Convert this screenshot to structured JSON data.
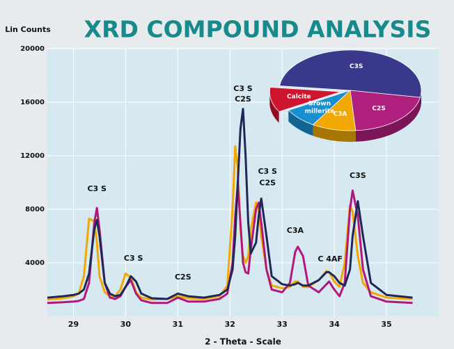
{
  "chart_data": {
    "type": "line",
    "title": "XRD COMPOUND ANALYSIS",
    "y_label": "Lin Counts",
    "x_label": "2 - Theta - Scale",
    "xlim": [
      28.5,
      36
    ],
    "ylim": [
      0,
      20000
    ],
    "xticks": [
      29,
      30,
      31,
      32,
      33,
      34,
      35
    ],
    "yticks": [
      4000,
      8000,
      12000,
      16000,
      20000
    ],
    "grid": true,
    "x": [
      28.5,
      28.8,
      29.0,
      29.1,
      29.2,
      29.3,
      29.4,
      29.45,
      29.5,
      29.6,
      29.7,
      29.8,
      29.9,
      30.0,
      30.1,
      30.2,
      30.3,
      30.5,
      30.8,
      31.0,
      31.2,
      31.5,
      31.8,
      31.95,
      32.05,
      32.1,
      32.15,
      32.2,
      32.25,
      32.3,
      32.35,
      32.4,
      32.5,
      32.55,
      32.6,
      32.7,
      32.8,
      33.0,
      33.15,
      33.25,
      33.3,
      33.4,
      33.5,
      33.7,
      33.85,
      33.9,
      34.0,
      34.1,
      34.2,
      34.3,
      34.35,
      34.45,
      34.55,
      34.7,
      35.0,
      35.5
    ],
    "series": [
      {
        "color": "#f2a800",
        "values": [
          1250,
          1350,
          1500,
          1700,
          3000,
          7300,
          7100,
          5500,
          3000,
          1800,
          1500,
          1500,
          2000,
          3200,
          2900,
          1800,
          1400,
          1250,
          1300,
          1500,
          1350,
          1300,
          1500,
          2300,
          8000,
          12700,
          11000,
          6500,
          4500,
          4000,
          4500,
          6500,
          8500,
          8000,
          6000,
          3500,
          2300,
          2100,
          2200,
          2600,
          2600,
          2200,
          2200,
          2700,
          3400,
          3300,
          2600,
          2200,
          4000,
          8300,
          7800,
          4500,
          2500,
          1800,
          1400,
          1300
        ]
      },
      {
        "color": "#b0187c",
        "values": [
          1000,
          1050,
          1100,
          1150,
          1300,
          2500,
          7000,
          8100,
          6500,
          2500,
          1400,
          1300,
          1500,
          2200,
          2700,
          1700,
          1200,
          1000,
          1000,
          1400,
          1100,
          1100,
          1300,
          1700,
          4000,
          7500,
          9900,
          7000,
          4000,
          3300,
          3200,
          5000,
          8000,
          8500,
          7000,
          3500,
          2000,
          1800,
          2500,
          4800,
          5200,
          4500,
          2300,
          1800,
          2400,
          2600,
          2000,
          1500,
          2500,
          8000,
          9400,
          7500,
          3500,
          1500,
          1100,
          1000
        ]
      },
      {
        "color": "#1f2757",
        "values": [
          1400,
          1500,
          1600,
          1700,
          2000,
          3200,
          6500,
          7200,
          6000,
          2500,
          1700,
          1500,
          1600,
          2200,
          3000,
          2600,
          1700,
          1350,
          1300,
          1700,
          1500,
          1400,
          1600,
          2000,
          3500,
          6000,
          10000,
          14000,
          15500,
          12000,
          7000,
          4700,
          5500,
          7500,
          8800,
          6000,
          3000,
          2400,
          2300,
          2400,
          2500,
          2300,
          2300,
          2700,
          3300,
          3300,
          3000,
          2500,
          2300,
          3500,
          6000,
          8600,
          6000,
          2500,
          1600,
          1400
        ]
      }
    ],
    "annotations": [
      {
        "text": "C3 S",
        "x": 29.45,
        "y": 9500
      },
      {
        "text": "C3 S",
        "x": 30.15,
        "y": 4300
      },
      {
        "text": "C2S",
        "x": 31.1,
        "y": 2900
      },
      {
        "text": "C3 S",
        "x": 32.25,
        "y": 17000
      },
      {
        "text": "C2S",
        "x": 32.25,
        "y": 16200
      },
      {
        "text": "C3 S",
        "x": 32.72,
        "y": 10800
      },
      {
        "text": "C2S",
        "x": 32.72,
        "y": 9950
      },
      {
        "text": "C3A",
        "x": 33.25,
        "y": 6400
      },
      {
        "text": "C 4AF",
        "x": 33.92,
        "y": 4250
      },
      {
        "text": "C3S",
        "x": 34.45,
        "y": 10500
      }
    ],
    "pie": {
      "type": "pie",
      "categories": [
        "C3S",
        "Calcite",
        "Brown millerite",
        "C3A",
        "C2S"
      ],
      "values": [
        51,
        10,
        8,
        10,
        21
      ],
      "colors": [
        "#3a388a",
        "#cf1430",
        "#1a8fd0",
        "#f0a800",
        "#ae1f7e"
      ],
      "explode": [
        0,
        1,
        0,
        0,
        0
      ]
    }
  }
}
